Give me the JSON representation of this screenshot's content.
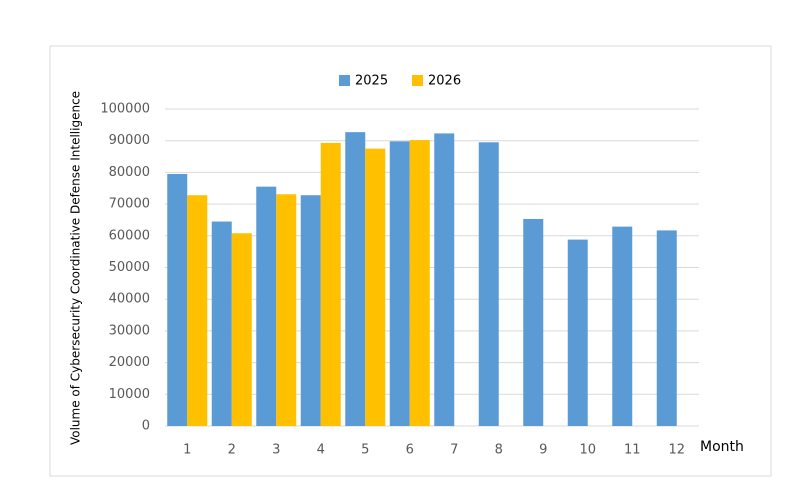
{
  "chart_data": {
    "type": "bar",
    "y_label": "Volume of Cybersecurity Coordinative Defense Intelligence",
    "x_label": "Month",
    "categories": [
      "1",
      "2",
      "3",
      "4",
      "5",
      "6",
      "7",
      "8",
      "9",
      "10",
      "11",
      "12"
    ],
    "series": [
      {
        "name": "2025",
        "color": "#5b9bd5",
        "values": [
          79500,
          64500,
          75500,
          72800,
          92700,
          89800,
          92300,
          89500,
          65300,
          58800,
          62900,
          61700
        ]
      },
      {
        "name": "2026",
        "color": "#ffc000",
        "values": [
          72800,
          60800,
          73100,
          89300,
          87500,
          90200,
          null,
          null,
          null,
          null,
          null,
          null
        ]
      }
    ],
    "ylim": [
      0,
      100000
    ],
    "yticks": [
      0,
      10000,
      20000,
      30000,
      40000,
      50000,
      60000,
      70000,
      80000,
      90000,
      100000
    ],
    "grid": true,
    "legend": "top"
  }
}
